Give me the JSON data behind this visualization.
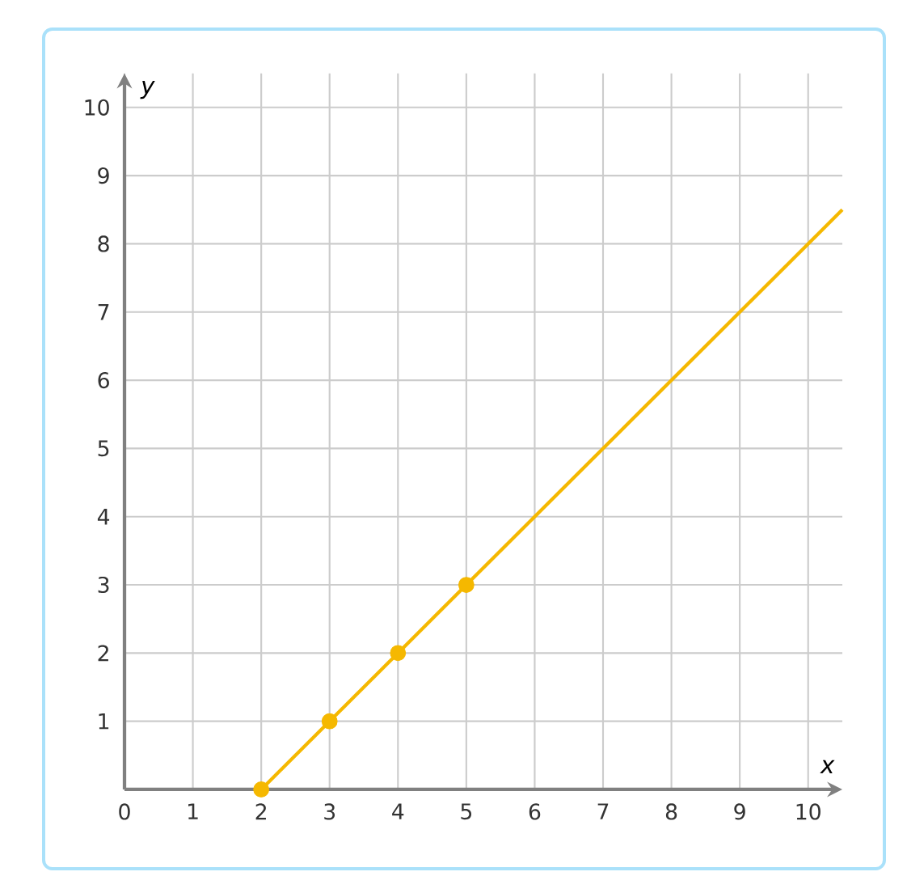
{
  "chart_data": {
    "type": "line",
    "xlabel": "*x*",
    "ylabel": "*y*",
    "xlim": [
      0,
      10.5
    ],
    "ylim": [
      0,
      10.5
    ],
    "xticks": [
      0,
      1,
      2,
      3,
      4,
      5,
      6,
      7,
      8,
      9,
      10
    ],
    "yticks": [
      1,
      2,
      3,
      4,
      5,
      6,
      7,
      8,
      9,
      10
    ],
    "grid": true,
    "series": [
      {
        "color": "#f5b800",
        "x": [
          2,
          10.5
        ],
        "values": [
          0,
          8.5
        ],
        "marker": "none"
      },
      {
        "type": "scatter",
        "color": "#f5b800",
        "x": [
          2,
          3,
          4,
          5
        ],
        "values": [
          0,
          1,
          2,
          3
        ],
        "marker": "circle"
      }
    ]
  }
}
